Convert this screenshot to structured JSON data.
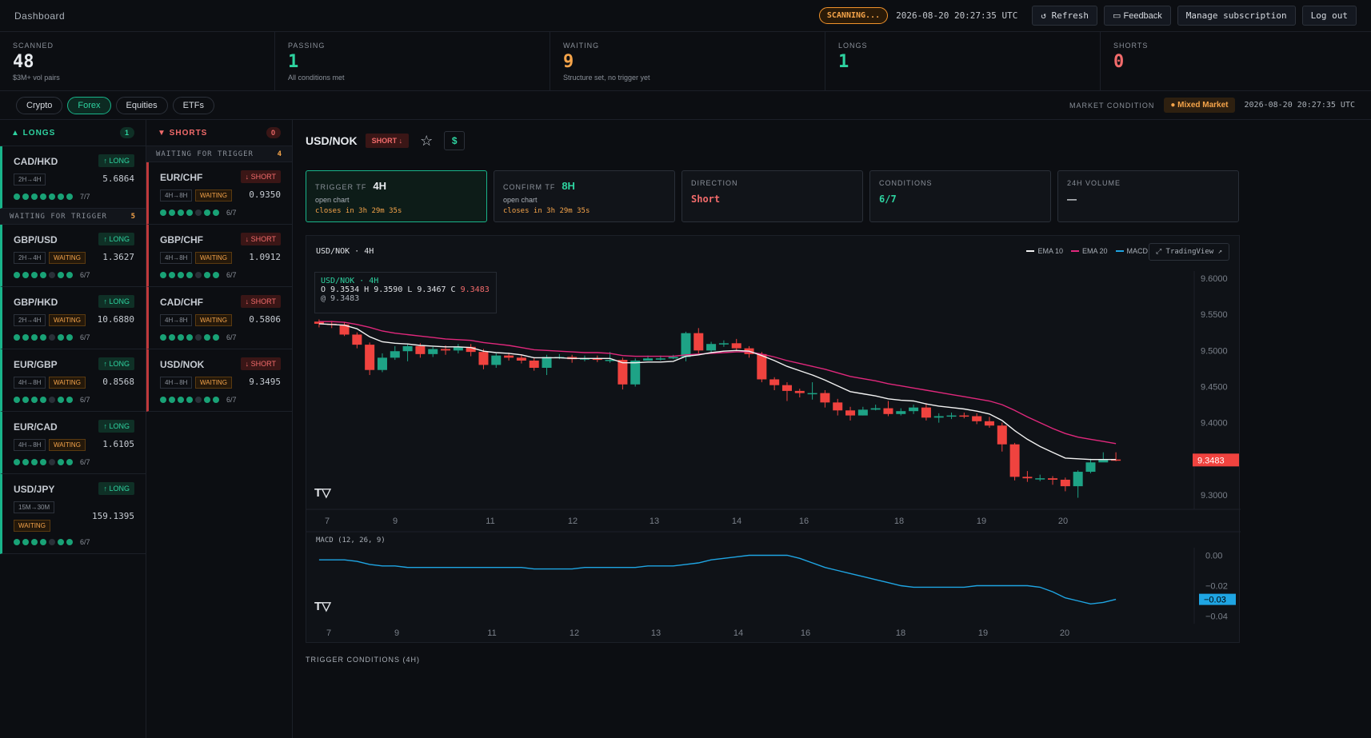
{
  "topbar": {
    "title": "Dashboard",
    "scanning": "SCANNING...",
    "timestamp": "2026-08-20 20:27:35 UTC",
    "refresh": "↺ Refresh",
    "feedback": "Feedback",
    "manage": "Manage subscription",
    "logout": "Log out"
  },
  "stats": [
    {
      "label": "SCANNED",
      "value": "48",
      "sub": "$3M+ vol pairs",
      "color": "#e8ebef"
    },
    {
      "label": "PASSING",
      "value": "1",
      "sub": "All conditions met",
      "color": "#2ed3a0"
    },
    {
      "label": "WAITING",
      "value": "9",
      "sub": "Structure set, no trigger yet",
      "color": "#f5a44a"
    },
    {
      "label": "LONGS",
      "value": "1",
      "sub": "",
      "color": "#2ed3a0"
    },
    {
      "label": "SHORTS",
      "value": "0",
      "sub": "",
      "color": "#f26b6b"
    }
  ],
  "tabs": [
    "Crypto",
    "Forex",
    "Equities",
    "ETFs"
  ],
  "active_tab": "Forex",
  "market": {
    "label": "MARKET CONDITION",
    "value": "● Mixed Market",
    "timestamp": "2026-08-20 20:27:35 UTC"
  },
  "longs": {
    "header": "▲ LONGS",
    "count": "1",
    "waiting_label": "WAITING FOR TRIGGER",
    "waiting_count": "5",
    "top": {
      "pair": "CAD/HKD",
      "badge": "↑ LONG",
      "tf": "2H→4H",
      "price": "5.6864",
      "score": "7/7",
      "on": 7
    },
    "items": [
      {
        "pair": "GBP/USD",
        "badge": "↑ LONG",
        "tf": "2H→4H",
        "wait": "WAITING",
        "price": "1.3627",
        "score": "6/7",
        "on": 6
      },
      {
        "pair": "GBP/HKD",
        "badge": "↑ LONG",
        "tf": "2H→4H",
        "wait": "WAITING",
        "price": "10.6880",
        "score": "6/7",
        "on": 6
      },
      {
        "pair": "EUR/GBP",
        "badge": "↑ LONG",
        "tf": "4H→8H",
        "wait": "WAITING",
        "price": "0.8568",
        "score": "6/7",
        "on": 6
      },
      {
        "pair": "EUR/CAD",
        "badge": "↑ LONG",
        "tf": "4H→8H",
        "wait": "WAITING",
        "price": "1.6105",
        "score": "6/7",
        "on": 6
      },
      {
        "pair": "USD/JPY",
        "badge": "↑ LONG",
        "tf": "15M→30M",
        "wait": "WAITING",
        "price": "159.1395",
        "score": "6/7",
        "on": 6
      }
    ]
  },
  "shorts": {
    "header": "▼ SHORTS",
    "count": "0",
    "waiting_label": "WAITING FOR TRIGGER",
    "waiting_count": "4",
    "items": [
      {
        "pair": "EUR/CHF",
        "badge": "↓ SHORT",
        "tf": "4H→8H",
        "wait": "WAITING",
        "price": "0.9350",
        "score": "6/7",
        "on": 6
      },
      {
        "pair": "GBP/CHF",
        "badge": "↓ SHORT",
        "tf": "4H→8H",
        "wait": "WAITING",
        "price": "1.0912",
        "score": "6/7",
        "on": 6
      },
      {
        "pair": "CAD/CHF",
        "badge": "↓ SHORT",
        "tf": "4H→8H",
        "wait": "WAITING",
        "price": "0.5806",
        "score": "6/7",
        "on": 6
      },
      {
        "pair": "USD/NOK",
        "badge": "↓ SHORT",
        "tf": "4H→8H",
        "wait": "WAITING",
        "price": "9.3495",
        "score": "6/7",
        "on": 6
      }
    ]
  },
  "detail": {
    "pair": "USD/NOK",
    "badge": "SHORT ↓",
    "star": "☆",
    "dollar": "$",
    "trigger_tf_label": "TRIGGER TF",
    "trigger_tf": "4H",
    "confirm_tf_label": "CONFIRM TF",
    "confirm_tf": "8H",
    "open_chart": "open chart",
    "closes": "closes in 3h 29m 35s",
    "direction_label": "DIRECTION",
    "direction": "Short",
    "conditions_label": "CONDITIONS",
    "conditions": "6/7",
    "volume_label": "24H VOLUME",
    "volume": "—",
    "trigger_conditions": "TRIGGER CONDITIONS (4H)"
  },
  "chart_data": {
    "type": "candlestick",
    "title": "USD/NOK · 4H",
    "ohlc_line1": "O 9.3534 H 9.3590 L 9.3467 C",
    "ohlc_close": "9.3483",
    "ohlc_line2": "@ 9.3483",
    "legend": [
      "EMA 10",
      "EMA 20",
      "MACD"
    ],
    "tradingview": "⤢ TradingView ↗",
    "price_axis": [
      "9.6000",
      "9.5500",
      "9.5000",
      "9.4500",
      "9.4000",
      "9.3000"
    ],
    "last_price": "9.3483",
    "x_ticks": [
      "7",
      "9",
      "11",
      "12",
      "13",
      "14",
      "16",
      "18",
      "19",
      "20"
    ],
    "macd_label": "MACD (12, 26, 9)",
    "macd_axis": [
      "0.00",
      "−0.02",
      "−0.04"
    ],
    "macd_last": "−0.03",
    "candles": [
      [
        9.54,
        9.537,
        9.543,
        9.532
      ],
      [
        9.537,
        9.536,
        9.541,
        9.531
      ],
      [
        9.536,
        9.522,
        9.539,
        9.52
      ],
      [
        9.522,
        9.508,
        9.525,
        9.503
      ],
      [
        9.508,
        9.473,
        9.511,
        9.466
      ],
      [
        9.473,
        9.49,
        9.496,
        9.47
      ],
      [
        9.49,
        9.499,
        9.506,
        9.487
      ],
      [
        9.499,
        9.506,
        9.509,
        9.485
      ],
      [
        9.506,
        9.495,
        9.51,
        9.49
      ],
      [
        9.495,
        9.502,
        9.505,
        9.491
      ],
      [
        9.502,
        9.5,
        9.507,
        9.494
      ],
      [
        9.5,
        9.505,
        9.509,
        9.496
      ],
      [
        9.505,
        9.498,
        9.509,
        9.492
      ],
      [
        9.498,
        9.48,
        9.502,
        9.474
      ],
      [
        9.48,
        9.493,
        9.496,
        9.476
      ],
      [
        9.493,
        9.49,
        9.497,
        9.486
      ],
      [
        9.49,
        9.486,
        9.494,
        9.482
      ],
      [
        9.486,
        9.476,
        9.49,
        9.472
      ],
      [
        9.476,
        9.491,
        9.494,
        9.466
      ],
      [
        9.491,
        9.491,
        9.495,
        9.488
      ],
      [
        9.491,
        9.488,
        9.494,
        9.483
      ],
      [
        9.488,
        9.489,
        9.493,
        9.485
      ],
      [
        9.489,
        9.487,
        9.493,
        9.484
      ],
      [
        9.487,
        9.487,
        9.498,
        9.483
      ],
      [
        9.487,
        9.453,
        9.49,
        9.446
      ],
      [
        9.453,
        9.486,
        9.489,
        9.45
      ],
      [
        9.486,
        9.489,
        9.493,
        9.486
      ],
      [
        9.489,
        9.489,
        9.493,
        9.486
      ],
      [
        9.489,
        9.491,
        9.494,
        9.488
      ],
      [
        9.491,
        9.524,
        9.526,
        9.485
      ],
      [
        9.524,
        9.5,
        9.531,
        9.496
      ],
      [
        9.5,
        9.509,
        9.512,
        9.497
      ],
      [
        9.509,
        9.51,
        9.514,
        9.505
      ],
      [
        9.51,
        9.503,
        9.516,
        9.5
      ],
      [
        9.503,
        9.495,
        9.506,
        9.49
      ],
      [
        9.495,
        9.46,
        9.498,
        9.456
      ],
      [
        9.46,
        9.452,
        9.463,
        9.445
      ],
      [
        9.452,
        9.444,
        9.456,
        9.43
      ],
      [
        9.444,
        9.441,
        9.447,
        9.435
      ],
      [
        9.441,
        9.441,
        9.456,
        9.432
      ],
      [
        9.441,
        9.428,
        9.445,
        9.421
      ],
      [
        9.428,
        9.417,
        9.433,
        9.41
      ],
      [
        9.417,
        9.41,
        9.422,
        9.403
      ],
      [
        9.41,
        9.418,
        9.422,
        9.41
      ],
      [
        9.418,
        9.42,
        9.425,
        9.417
      ],
      [
        9.42,
        9.412,
        9.43,
        9.409
      ],
      [
        9.412,
        9.416,
        9.42,
        9.41
      ],
      [
        9.416,
        9.421,
        9.425,
        9.412
      ],
      [
        9.421,
        9.407,
        9.427,
        9.403
      ],
      [
        9.407,
        9.409,
        9.413,
        9.4
      ],
      [
        9.409,
        9.41,
        9.414,
        9.405
      ],
      [
        9.41,
        9.409,
        9.414,
        9.406
      ],
      [
        9.409,
        9.402,
        9.413,
        9.398
      ],
      [
        9.402,
        9.396,
        9.408,
        9.393
      ],
      [
        9.396,
        9.37,
        9.4,
        9.36
      ],
      [
        9.37,
        9.325,
        9.372,
        9.32
      ],
      [
        9.325,
        9.323,
        9.333,
        9.318
      ],
      [
        9.323,
        9.323,
        9.328,
        9.319
      ],
      [
        9.323,
        9.321,
        9.326,
        9.314
      ],
      [
        9.321,
        9.312,
        9.324,
        9.305
      ],
      [
        9.312,
        9.332,
        9.334,
        9.296
      ],
      [
        9.332,
        9.345,
        9.35,
        9.33
      ],
      [
        9.345,
        9.349,
        9.359,
        9.346
      ],
      [
        9.349,
        9.3483,
        9.359,
        9.3467
      ]
    ],
    "ema10": [
      9.537,
      9.536,
      9.535,
      9.53,
      9.519,
      9.512,
      9.51,
      9.509,
      9.507,
      9.506,
      9.505,
      9.505,
      9.504,
      9.499,
      9.497,
      9.496,
      9.494,
      9.49,
      9.49,
      9.49,
      9.489,
      9.489,
      9.489,
      9.489,
      9.483,
      9.483,
      9.484,
      9.484,
      9.485,
      9.492,
      9.494,
      9.497,
      9.499,
      9.5,
      9.499,
      9.493,
      9.486,
      9.478,
      9.472,
      9.466,
      9.459,
      9.451,
      9.443,
      9.44,
      9.437,
      9.433,
      9.431,
      9.43,
      9.426,
      9.423,
      9.421,
      9.419,
      9.416,
      9.412,
      9.403,
      9.389,
      9.377,
      9.367,
      9.359,
      9.351,
      9.35,
      9.349,
      9.349,
      9.349
    ],
    "ema20": [
      9.54,
      9.54,
      9.539,
      9.536,
      9.532,
      9.527,
      9.524,
      9.522,
      9.52,
      9.518,
      9.516,
      9.515,
      9.514,
      9.511,
      9.509,
      9.507,
      9.504,
      9.501,
      9.5,
      9.499,
      9.498,
      9.497,
      9.497,
      9.496,
      9.493,
      9.492,
      9.492,
      9.492,
      9.492,
      9.494,
      9.495,
      9.496,
      9.497,
      9.498,
      9.498,
      9.495,
      9.491,
      9.486,
      9.482,
      9.478,
      9.474,
      9.469,
      9.464,
      9.461,
      9.458,
      9.454,
      9.451,
      9.448,
      9.445,
      9.442,
      9.439,
      9.436,
      9.433,
      9.43,
      9.425,
      9.417,
      9.408,
      9.4,
      9.392,
      9.385,
      9.38,
      9.377,
      9.374,
      9.371
    ],
    "macd": [
      -0.003,
      -0.003,
      -0.003,
      -0.004,
      -0.006,
      -0.007,
      -0.007,
      -0.008,
      -0.008,
      -0.008,
      -0.008,
      -0.008,
      -0.008,
      -0.008,
      -0.008,
      -0.008,
      -0.008,
      -0.009,
      -0.009,
      -0.009,
      -0.009,
      -0.008,
      -0.008,
      -0.008,
      -0.008,
      -0.008,
      -0.007,
      -0.007,
      -0.007,
      -0.006,
      -0.005,
      -0.003,
      -0.002,
      -0.001,
      0.0,
      0.0,
      0.0,
      0.0,
      -0.002,
      -0.005,
      -0.008,
      -0.01,
      -0.012,
      -0.014,
      -0.016,
      -0.018,
      -0.02,
      -0.021,
      -0.021,
      -0.021,
      -0.021,
      -0.021,
      -0.02,
      -0.02,
      -0.02,
      -0.02,
      -0.02,
      -0.021,
      -0.024,
      -0.028,
      -0.03,
      -0.032,
      -0.031,
      -0.029
    ]
  },
  "colors": {
    "up": "#1ea386",
    "down": "#f0433f",
    "ema10": "#f2f2f2",
    "ema20": "#e0287c",
    "macd": "#1fa5e3",
    "accent": "#2ed3a0",
    "warn": "#f5a44a"
  }
}
